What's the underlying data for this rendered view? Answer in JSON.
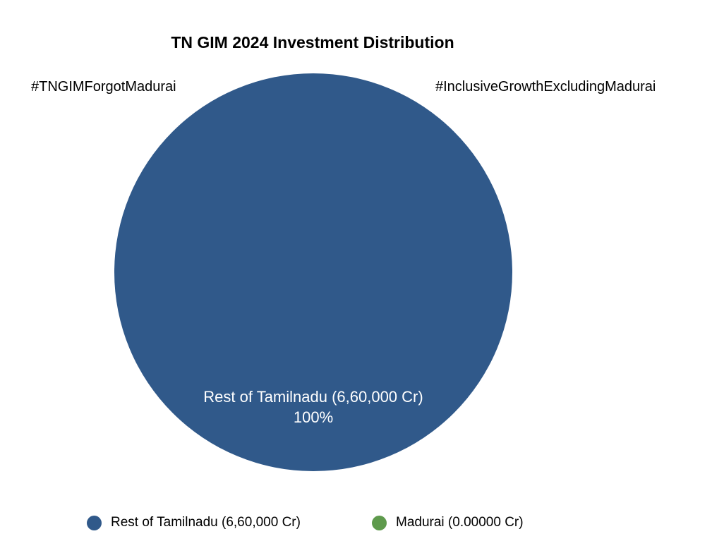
{
  "chart_data": {
    "type": "pie",
    "title": "TN GIM 2024 Investment Distribution",
    "annotations": [
      "#TNGIMForgotMadurai",
      "#InclusiveGrowthExcludingMadurai"
    ],
    "slices": [
      {
        "label": "Rest of Tamilnadu (6,60,000 Cr)",
        "value": 660000,
        "percent_label": "100%",
        "color": "#30598a"
      },
      {
        "label": "Madurai (0.00000 Cr)",
        "value": 0,
        "percent_label": "",
        "color": "#5e9a4c"
      }
    ],
    "legend": {
      "position": "bottom",
      "items": [
        "Rest of Tamilnadu (6,60,000 Cr)",
        "Madurai (0.00000 Cr)"
      ]
    }
  }
}
